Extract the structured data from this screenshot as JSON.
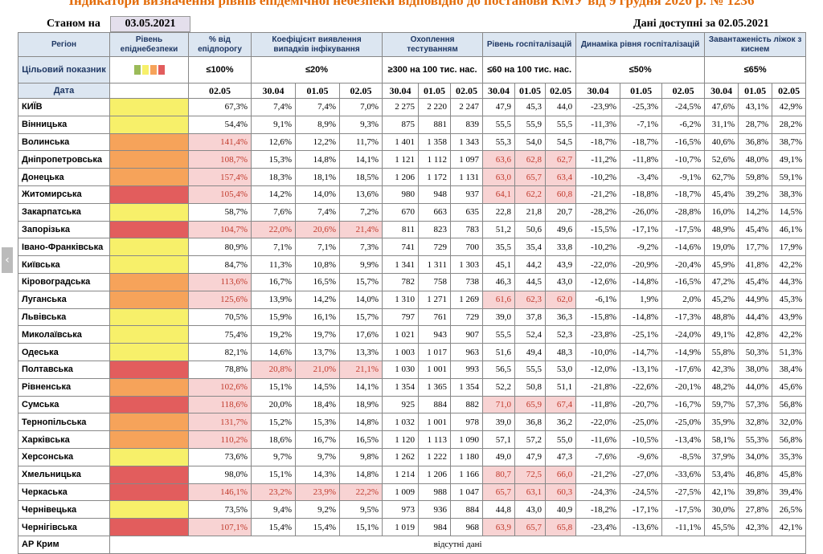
{
  "header": {
    "title": "Індикатори визначення рівнів епідемічної небезпеки відповідно до постанови КМУ від 9 грудня 2020 р. № 1236",
    "as_of_label": "Станом на",
    "as_of_date": "03.05.2021",
    "data_available": "Дані доступні за  02.05.2021"
  },
  "columns": {
    "region": "Регіон",
    "level": "Рівень епіднебезпеки",
    "pct": "% від епідпорогу",
    "detect": "Коефіцієнт виявлення випадків інфікування",
    "tests": "Охоплення тестуванням",
    "hosp": "Рівень госпіталізацій",
    "dyn": "Динаміка рівня госпіталізацій",
    "beds": "Завантаженість ліжок з киснем"
  },
  "target": {
    "label": "Цільовий показник",
    "pct": "≤100%",
    "detect": "≤20%",
    "tests": "≥300 на 100 тис. нас.",
    "hosp": "≤60 на 100 тис. нас.",
    "dyn": "≤50%",
    "beds": "≤65%"
  },
  "dates": {
    "label": "Дата",
    "pct": "02.05",
    "sub": [
      "30.04",
      "01.05",
      "02.05"
    ]
  },
  "level_colors": {
    "y": "#f7f06a",
    "o": "#f6a35a",
    "r": "#e25d5d",
    "g": "#9bbb59"
  },
  "rows": [
    {
      "name": "КИЇВ",
      "lvl": "y",
      "pct": "67,3%",
      "d": [
        "7,4%",
        "7,4%",
        "7,0%"
      ],
      "t": [
        "2 275",
        "2 220",
        "2 247"
      ],
      "h": [
        "47,9",
        "45,3",
        "44,0"
      ],
      "g": [
        "-23,9%",
        "-25,3%",
        "-24,5%"
      ],
      "b": [
        "47,6%",
        "43,1%",
        "42,9%"
      ]
    },
    {
      "name": "Вінницька",
      "lvl": "y",
      "pct": "54,4%",
      "d": [
        "9,1%",
        "8,9%",
        "9,3%"
      ],
      "t": [
        "875",
        "881",
        "839"
      ],
      "h": [
        "55,5",
        "55,9",
        "55,5"
      ],
      "g": [
        "-11,3%",
        "-7,1%",
        "-6,2%"
      ],
      "b": [
        "31,1%",
        "28,7%",
        "28,2%"
      ]
    },
    {
      "name": "Волинська",
      "lvl": "o",
      "pct": "141,4%",
      "pctHl": true,
      "d": [
        "12,6%",
        "12,2%",
        "11,7%"
      ],
      "t": [
        "1 401",
        "1 358",
        "1 343"
      ],
      "h": [
        "55,3",
        "54,0",
        "54,5"
      ],
      "g": [
        "-18,7%",
        "-18,7%",
        "-16,5%"
      ],
      "b": [
        "40,6%",
        "36,8%",
        "38,7%"
      ]
    },
    {
      "name": "Дніпропетровська",
      "lvl": "o",
      "pct": "108,7%",
      "pctHl": true,
      "d": [
        "15,3%",
        "14,8%",
        "14,1%"
      ],
      "t": [
        "1 121",
        "1 112",
        "1 097"
      ],
      "h": [
        "63,6",
        "62,8",
        "62,7"
      ],
      "hHl": true,
      "g": [
        "-11,2%",
        "-11,8%",
        "-10,7%"
      ],
      "b": [
        "52,6%",
        "48,0%",
        "49,1%"
      ]
    },
    {
      "name": "Донецька",
      "lvl": "o",
      "pct": "157,4%",
      "pctHl": true,
      "d": [
        "18,3%",
        "18,1%",
        "18,5%"
      ],
      "t": [
        "1 206",
        "1 172",
        "1 131"
      ],
      "h": [
        "63,0",
        "65,7",
        "63,4"
      ],
      "hHl": true,
      "g": [
        "-10,2%",
        "-3,4%",
        "-9,1%"
      ],
      "b": [
        "62,7%",
        "59,8%",
        "59,1%"
      ]
    },
    {
      "name": "Житомирська",
      "lvl": "r",
      "pct": "105,4%",
      "pctHl": true,
      "d": [
        "14,2%",
        "14,0%",
        "13,6%"
      ],
      "t": [
        "980",
        "948",
        "937"
      ],
      "h": [
        "64,1",
        "62,2",
        "60,8"
      ],
      "hHl": true,
      "g": [
        "-21,2%",
        "-18,8%",
        "-18,7%"
      ],
      "b": [
        "45,4%",
        "39,2%",
        "38,3%"
      ]
    },
    {
      "name": "Закарпатська",
      "lvl": "y",
      "pct": "58,7%",
      "d": [
        "7,6%",
        "7,4%",
        "7,2%"
      ],
      "t": [
        "670",
        "663",
        "635"
      ],
      "h": [
        "22,8",
        "21,8",
        "20,7"
      ],
      "g": [
        "-28,2%",
        "-26,0%",
        "-28,8%"
      ],
      "b": [
        "16,0%",
        "14,2%",
        "14,5%"
      ]
    },
    {
      "name": "Запорізька",
      "lvl": "r",
      "pct": "104,7%",
      "pctHl": true,
      "d": [
        "22,0%",
        "20,6%",
        "21,4%"
      ],
      "dHl": true,
      "t": [
        "811",
        "823",
        "783"
      ],
      "h": [
        "51,2",
        "50,6",
        "49,6"
      ],
      "g": [
        "-15,5%",
        "-17,1%",
        "-17,5%"
      ],
      "b": [
        "48,9%",
        "45,4%",
        "46,1%"
      ]
    },
    {
      "name": "Івано-Франківська",
      "lvl": "y",
      "pct": "80,9%",
      "d": [
        "7,1%",
        "7,1%",
        "7,3%"
      ],
      "t": [
        "741",
        "729",
        "700"
      ],
      "h": [
        "35,5",
        "35,4",
        "33,8"
      ],
      "g": [
        "-10,2%",
        "-9,2%",
        "-14,6%"
      ],
      "b": [
        "19,0%",
        "17,7%",
        "17,9%"
      ]
    },
    {
      "name": "Київська",
      "lvl": "y",
      "pct": "84,7%",
      "d": [
        "11,3%",
        "10,8%",
        "9,9%"
      ],
      "t": [
        "1 341",
        "1 311",
        "1 303"
      ],
      "h": [
        "45,1",
        "44,2",
        "43,9"
      ],
      "g": [
        "-22,0%",
        "-20,9%",
        "-20,4%"
      ],
      "b": [
        "45,9%",
        "41,8%",
        "42,2%"
      ]
    },
    {
      "name": "Кіровоградська",
      "lvl": "o",
      "pct": "113,6%",
      "pctHl": true,
      "d": [
        "16,7%",
        "16,5%",
        "15,7%"
      ],
      "t": [
        "782",
        "758",
        "738"
      ],
      "h": [
        "46,3",
        "44,5",
        "43,0"
      ],
      "g": [
        "-12,6%",
        "-14,8%",
        "-16,5%"
      ],
      "b": [
        "47,2%",
        "45,4%",
        "44,3%"
      ]
    },
    {
      "name": "Луганська",
      "lvl": "o",
      "pct": "125,6%",
      "pctHl": true,
      "d": [
        "13,9%",
        "14,2%",
        "14,0%"
      ],
      "t": [
        "1 310",
        "1 271",
        "1 269"
      ],
      "h": [
        "61,6",
        "62,3",
        "62,0"
      ],
      "hHl": true,
      "g": [
        "-6,1%",
        "1,9%",
        "2,0%"
      ],
      "b": [
        "45,2%",
        "44,9%",
        "45,3%"
      ]
    },
    {
      "name": "Львівська",
      "lvl": "y",
      "pct": "70,5%",
      "d": [
        "15,9%",
        "16,1%",
        "15,7%"
      ],
      "t": [
        "797",
        "761",
        "729"
      ],
      "h": [
        "39,0",
        "37,8",
        "36,3"
      ],
      "g": [
        "-15,8%",
        "-14,8%",
        "-17,3%"
      ],
      "b": [
        "48,8%",
        "44,4%",
        "43,9%"
      ]
    },
    {
      "name": "Миколаївська",
      "lvl": "y",
      "pct": "75,4%",
      "d": [
        "19,2%",
        "19,7%",
        "17,6%"
      ],
      "t": [
        "1 021",
        "943",
        "907"
      ],
      "h": [
        "55,5",
        "52,4",
        "52,3"
      ],
      "g": [
        "-23,8%",
        "-25,1%",
        "-24,0%"
      ],
      "b": [
        "49,1%",
        "42,8%",
        "42,2%"
      ]
    },
    {
      "name": "Одеська",
      "lvl": "y",
      "pct": "82,1%",
      "d": [
        "14,6%",
        "13,7%",
        "13,3%"
      ],
      "t": [
        "1 003",
        "1 017",
        "963"
      ],
      "h": [
        "51,6",
        "49,4",
        "48,3"
      ],
      "g": [
        "-10,0%",
        "-14,7%",
        "-14,9%"
      ],
      "b": [
        "55,8%",
        "50,3%",
        "51,3%"
      ]
    },
    {
      "name": "Полтавська",
      "lvl": "r",
      "pct": "78,8%",
      "d": [
        "20,8%",
        "21,0%",
        "21,1%"
      ],
      "dHl": true,
      "t": [
        "1 030",
        "1 001",
        "993"
      ],
      "h": [
        "56,5",
        "55,5",
        "53,0"
      ],
      "g": [
        "-12,0%",
        "-13,1%",
        "-17,6%"
      ],
      "b": [
        "42,3%",
        "38,0%",
        "38,4%"
      ]
    },
    {
      "name": "Рівненська",
      "lvl": "o",
      "pct": "102,6%",
      "pctHl": true,
      "d": [
        "15,1%",
        "14,5%",
        "14,1%"
      ],
      "t": [
        "1 354",
        "1 365",
        "1 354"
      ],
      "h": [
        "52,2",
        "50,8",
        "51,1"
      ],
      "g": [
        "-21,8%",
        "-22,6%",
        "-20,1%"
      ],
      "b": [
        "48,2%",
        "44,0%",
        "45,6%"
      ]
    },
    {
      "name": "Сумська",
      "lvl": "r",
      "pct": "118,6%",
      "pctHl": true,
      "d": [
        "20,0%",
        "18,4%",
        "18,9%"
      ],
      "t": [
        "925",
        "884",
        "882"
      ],
      "h": [
        "71,0",
        "65,9",
        "67,4"
      ],
      "hHl": true,
      "g": [
        "-11,8%",
        "-20,7%",
        "-16,7%"
      ],
      "b": [
        "59,7%",
        "57,3%",
        "56,8%"
      ]
    },
    {
      "name": "Тернопільська",
      "lvl": "o",
      "pct": "131,7%",
      "pctHl": true,
      "d": [
        "15,2%",
        "15,3%",
        "14,8%"
      ],
      "t": [
        "1 032",
        "1 001",
        "978"
      ],
      "h": [
        "39,0",
        "36,8",
        "36,2"
      ],
      "g": [
        "-22,0%",
        "-25,0%",
        "-25,0%"
      ],
      "b": [
        "35,9%",
        "32,8%",
        "32,0%"
      ]
    },
    {
      "name": "Харківська",
      "lvl": "o",
      "pct": "110,2%",
      "pctHl": true,
      "d": [
        "18,6%",
        "16,7%",
        "16,5%"
      ],
      "t": [
        "1 120",
        "1 113",
        "1 090"
      ],
      "h": [
        "57,1",
        "57,2",
        "55,0"
      ],
      "g": [
        "-11,6%",
        "-10,5%",
        "-13,4%"
      ],
      "b": [
        "58,1%",
        "55,3%",
        "56,8%"
      ]
    },
    {
      "name": "Херсонська",
      "lvl": "y",
      "pct": "73,6%",
      "d": [
        "9,7%",
        "9,7%",
        "9,8%"
      ],
      "t": [
        "1 262",
        "1 222",
        "1 180"
      ],
      "h": [
        "49,0",
        "47,9",
        "47,3"
      ],
      "g": [
        "-7,6%",
        "-9,6%",
        "-8,5%"
      ],
      "b": [
        "37,9%",
        "34,0%",
        "35,3%"
      ]
    },
    {
      "name": "Хмельницька",
      "lvl": "r",
      "pct": "98,0%",
      "d": [
        "15,1%",
        "14,3%",
        "14,8%"
      ],
      "t": [
        "1 214",
        "1 206",
        "1 166"
      ],
      "h": [
        "80,7",
        "72,5",
        "66,0"
      ],
      "hHl": true,
      "g": [
        "-21,2%",
        "-27,0%",
        "-33,6%"
      ],
      "b": [
        "53,4%",
        "46,8%",
        "45,8%"
      ]
    },
    {
      "name": "Черкаська",
      "lvl": "r",
      "pct": "146,1%",
      "pctHl": true,
      "d": [
        "23,2%",
        "23,9%",
        "22,2%"
      ],
      "dHl": true,
      "t": [
        "1 009",
        "988",
        "1 047"
      ],
      "h": [
        "65,7",
        "63,1",
        "60,3"
      ],
      "hHl": true,
      "g": [
        "-24,3%",
        "-24,5%",
        "-27,5%"
      ],
      "b": [
        "42,1%",
        "39,8%",
        "39,4%"
      ]
    },
    {
      "name": "Чернівецька",
      "lvl": "y",
      "pct": "73,5%",
      "d": [
        "9,4%",
        "9,2%",
        "9,5%"
      ],
      "t": [
        "973",
        "936",
        "884"
      ],
      "h": [
        "44,8",
        "43,0",
        "40,9"
      ],
      "g": [
        "-18,2%",
        "-17,1%",
        "-17,5%"
      ],
      "b": [
        "30,0%",
        "27,8%",
        "26,5%"
      ]
    },
    {
      "name": "Чернігівська",
      "lvl": "r",
      "pct": "107,1%",
      "pctHl": true,
      "d": [
        "15,4%",
        "15,4%",
        "15,1%"
      ],
      "t": [
        "1 019",
        "984",
        "968"
      ],
      "h": [
        "63,9",
        "65,7",
        "65,8"
      ],
      "hHl": true,
      "g": [
        "-23,4%",
        "-13,6%",
        "-11,1%"
      ],
      "b": [
        "45,5%",
        "42,3%",
        "42,1%"
      ]
    }
  ],
  "crimea": {
    "name": "АР Крим",
    "note": "відсутні дані"
  }
}
